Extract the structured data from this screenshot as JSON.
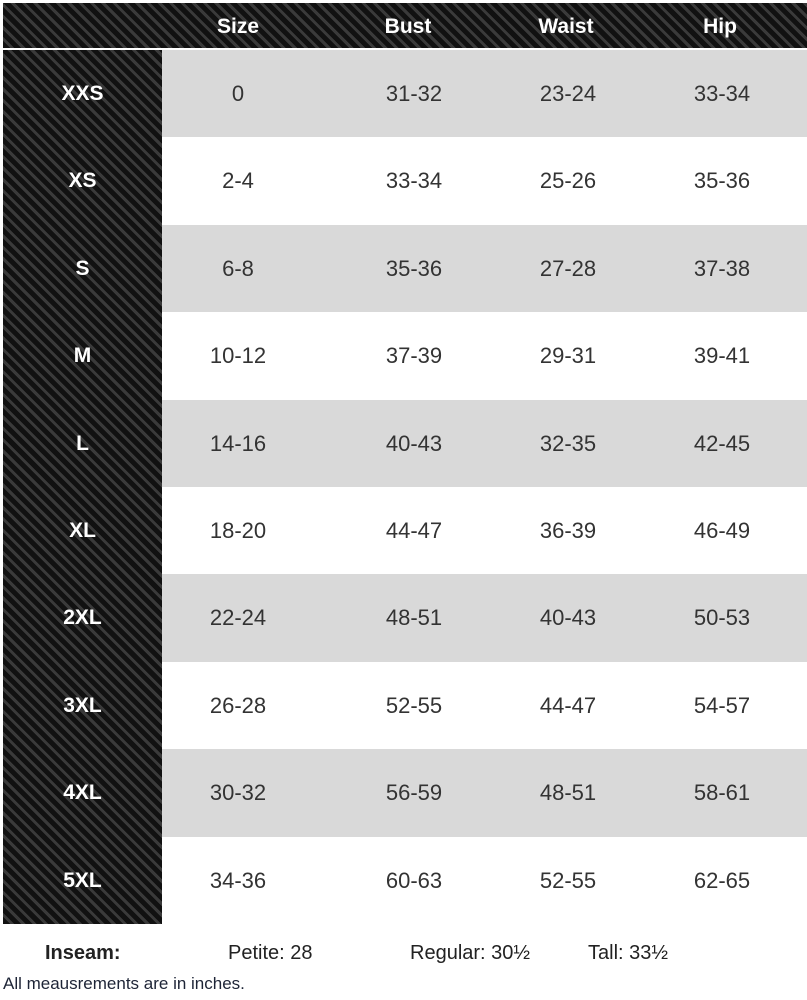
{
  "columns": [
    "Size",
    "Bust",
    "Waist",
    "Hip"
  ],
  "rows": [
    {
      "label": "XXS",
      "size": "0",
      "bust": "31-32",
      "waist": "23-24",
      "hip": "33-34"
    },
    {
      "label": "XS",
      "size": "2-4",
      "bust": "33-34",
      "waist": "25-26",
      "hip": "35-36"
    },
    {
      "label": "S",
      "size": "6-8",
      "bust": "35-36",
      "waist": "27-28",
      "hip": "37-38"
    },
    {
      "label": "M",
      "size": "10-12",
      "bust": "37-39",
      "waist": "29-31",
      "hip": "39-41"
    },
    {
      "label": "L",
      "size": "14-16",
      "bust": "40-43",
      "waist": "32-35",
      "hip": "42-45"
    },
    {
      "label": "XL",
      "size": "18-20",
      "bust": "44-47",
      "waist": "36-39",
      "hip": "46-49"
    },
    {
      "label": "2XL",
      "size": "22-24",
      "bust": "48-51",
      "waist": "40-43",
      "hip": "50-53"
    },
    {
      "label": "3XL",
      "size": "26-28",
      "bust": "52-55",
      "waist": "44-47",
      "hip": "54-57"
    },
    {
      "label": "4XL",
      "size": "30-32",
      "bust": "56-59",
      "waist": "48-51",
      "hip": "58-61"
    },
    {
      "label": "5XL",
      "size": "34-36",
      "bust": "60-63",
      "waist": "52-55",
      "hip": "62-65"
    }
  ],
  "footer": {
    "inseam_label": "Inseam:",
    "petite": "Petite: 28",
    "regular": "Regular: 30½",
    "tall": "Tall: 33½",
    "note": "All meausrements are in inches."
  },
  "colors": {
    "header_bg": "#1a1a1a",
    "row_alt": "#d9d9d9"
  }
}
